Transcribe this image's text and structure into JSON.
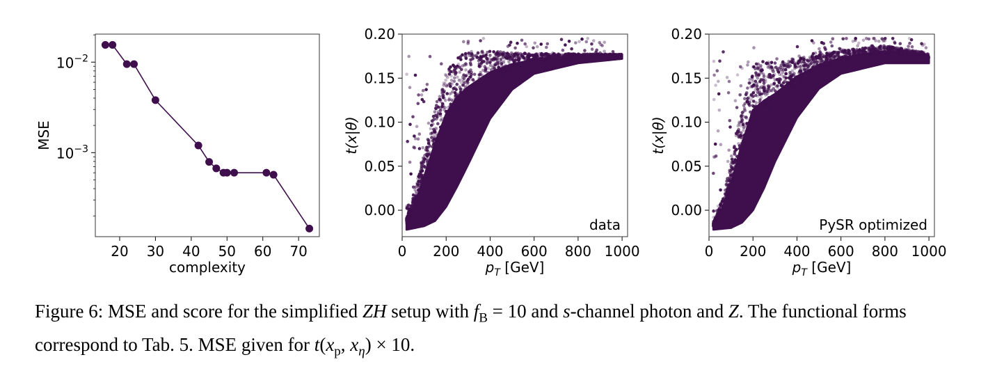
{
  "figure": {
    "caption_label": "Figure 6:",
    "caption_parts": [
      " MSE and score for the simplified ",
      "ZH",
      " setup with ",
      "f",
      "B",
      " = 10 and ",
      "s",
      "-channel photon and ",
      "Z",
      ". The functional forms correspond to Tab. 5. MSE given for ",
      "t",
      "(",
      "x",
      "p",
      ", ",
      "x",
      "η",
      ") × 10."
    ]
  },
  "colors": {
    "marker": "#3f0f4d",
    "line": "#3f0f4d"
  },
  "chart_data": [
    {
      "type": "line",
      "xlabel": "complexity",
      "ylabel": "MSE",
      "yscale": "log",
      "xlim": [
        13.2,
        75.8
      ],
      "ylim": [
        0.000118,
        0.0204
      ],
      "xticks": [
        20,
        30,
        40,
        50,
        60,
        70
      ],
      "yticks": [
        {
          "value": 0.01,
          "label": "10",
          "exp": "−2"
        },
        {
          "value": 0.001,
          "label": "10",
          "exp": "−3"
        }
      ],
      "x": [
        16,
        18,
        22,
        24,
        30,
        42,
        45,
        47,
        49,
        50,
        52,
        61,
        63,
        73
      ],
      "y": [
        0.0155,
        0.0155,
        0.0095,
        0.0095,
        0.0038,
        0.0012,
        0.00079,
        0.00067,
        0.0006,
        0.0006,
        0.0006,
        0.0006,
        0.00057,
        0.000145
      ],
      "markers": true
    },
    {
      "type": "scatter",
      "xlabel_main": "p",
      "xlabel_sub": "T",
      "xlabel_rest": " [GeV]",
      "ylabel": "t(x|θ)",
      "xlim": [
        0,
        1025
      ],
      "ylim": [
        -0.03,
        0.2
      ],
      "xticks": [
        0,
        200,
        400,
        600,
        800,
        1000
      ],
      "yticks": [
        "0.00",
        "0.05",
        "0.10",
        "0.15",
        "0.20"
      ],
      "annotation": "data",
      "annotation_position": "bottom-right",
      "lower_envelope": [
        [
          20,
          -0.022
        ],
        [
          100,
          -0.018
        ],
        [
          150,
          -0.012
        ],
        [
          200,
          0.004
        ],
        [
          250,
          0.027
        ],
        [
          300,
          0.052
        ],
        [
          400,
          0.104
        ],
        [
          500,
          0.137
        ],
        [
          600,
          0.155
        ],
        [
          800,
          0.167
        ],
        [
          1000,
          0.172
        ]
      ],
      "upper_envelope": [
        [
          20,
          -0.01
        ],
        [
          60,
          0.02
        ],
        [
          100,
          0.06
        ],
        [
          150,
          0.11
        ],
        [
          200,
          0.15
        ],
        [
          250,
          0.168
        ],
        [
          300,
          0.174
        ],
        [
          400,
          0.177
        ],
        [
          600,
          0.177
        ],
        [
          1000,
          0.177
        ]
      ]
    },
    {
      "type": "scatter",
      "xlabel_main": "p",
      "xlabel_sub": "T",
      "xlabel_rest": " [GeV]",
      "ylabel": "t(x|θ)",
      "xlim": [
        0,
        1025
      ],
      "ylim": [
        -0.03,
        0.2
      ],
      "xticks": [
        0,
        200,
        400,
        600,
        800,
        1000
      ],
      "yticks": [
        "0.00",
        "0.05",
        "0.10",
        "0.15",
        "0.20"
      ],
      "annotation": "PySR optimized",
      "annotation_position": "bottom-right",
      "lower_envelope": [
        [
          20,
          -0.022
        ],
        [
          100,
          -0.02
        ],
        [
          150,
          -0.014
        ],
        [
          200,
          0.0
        ],
        [
          250,
          0.025
        ],
        [
          300,
          0.055
        ],
        [
          400,
          0.105
        ],
        [
          500,
          0.138
        ],
        [
          600,
          0.155
        ],
        [
          800,
          0.167
        ],
        [
          1000,
          0.167
        ]
      ],
      "upper_envelope": [
        [
          20,
          -0.015
        ],
        [
          60,
          0.01
        ],
        [
          100,
          0.05
        ],
        [
          150,
          0.11
        ],
        [
          200,
          0.158
        ],
        [
          250,
          0.163
        ],
        [
          300,
          0.162
        ],
        [
          400,
          0.17
        ],
        [
          600,
          0.18
        ],
        [
          800,
          0.186
        ],
        [
          1000,
          0.178
        ]
      ]
    }
  ]
}
